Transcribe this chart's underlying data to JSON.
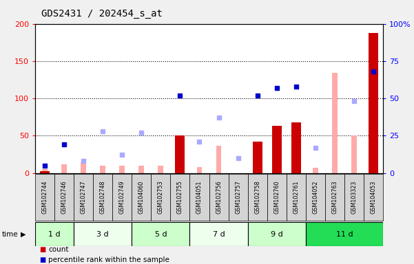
{
  "title": "GDS2431 / 202454_s_at",
  "samples": [
    "GSM102744",
    "GSM102746",
    "GSM102747",
    "GSM102748",
    "GSM102749",
    "GSM104060",
    "GSM102753",
    "GSM102755",
    "GSM104051",
    "GSM102756",
    "GSM102757",
    "GSM102758",
    "GSM102760",
    "GSM102761",
    "GSM104052",
    "GSM102763",
    "GSM103323",
    "GSM104053"
  ],
  "time_groups": [
    {
      "label": "1 d",
      "start": 0,
      "end": 2,
      "color": "#ccffcc"
    },
    {
      "label": "3 d",
      "start": 2,
      "end": 5,
      "color": "#eeffee"
    },
    {
      "label": "5 d",
      "start": 5,
      "end": 8,
      "color": "#ccffcc"
    },
    {
      "label": "7 d",
      "start": 8,
      "end": 11,
      "color": "#eeffee"
    },
    {
      "label": "9 d",
      "start": 11,
      "end": 14,
      "color": "#ccffcc"
    },
    {
      "label": "11 d",
      "start": 14,
      "end": 18,
      "color": "#22dd55"
    }
  ],
  "count_bars": [
    2,
    0,
    0,
    0,
    0,
    0,
    0,
    50,
    0,
    0,
    0,
    42,
    63,
    68,
    0,
    0,
    0,
    188
  ],
  "percentile_rank_left": [
    10,
    38,
    null,
    null,
    null,
    null,
    null,
    104,
    null,
    null,
    null,
    104,
    114,
    116,
    null,
    null,
    null,
    136
  ],
  "value_absent": [
    5,
    12,
    14,
    10,
    10,
    10,
    10,
    12,
    8,
    36,
    null,
    null,
    null,
    null,
    7,
    134,
    50,
    null
  ],
  "rank_absent_left": [
    null,
    null,
    16,
    56,
    24,
    54,
    null,
    null,
    42,
    74,
    20,
    null,
    null,
    null,
    34,
    null,
    96,
    null
  ],
  "ylim_left": [
    0,
    200
  ],
  "ylim_right": [
    0,
    100
  ],
  "yticks_left": [
    0,
    50,
    100,
    150,
    200
  ],
  "yticks_right": [
    0,
    25,
    50,
    75,
    100
  ],
  "ytick_labels_right": [
    "0",
    "25",
    "50",
    "75",
    "100%"
  ],
  "bar_color": "#cc0000",
  "rank_color": "#0000cc",
  "value_absent_color": "#ffaaaa",
  "rank_absent_color": "#aaaaff",
  "sample_bg_color": "#d4d4d4",
  "plot_bg_color": "#ffffff",
  "fig_bg_color": "#f0f0f0"
}
